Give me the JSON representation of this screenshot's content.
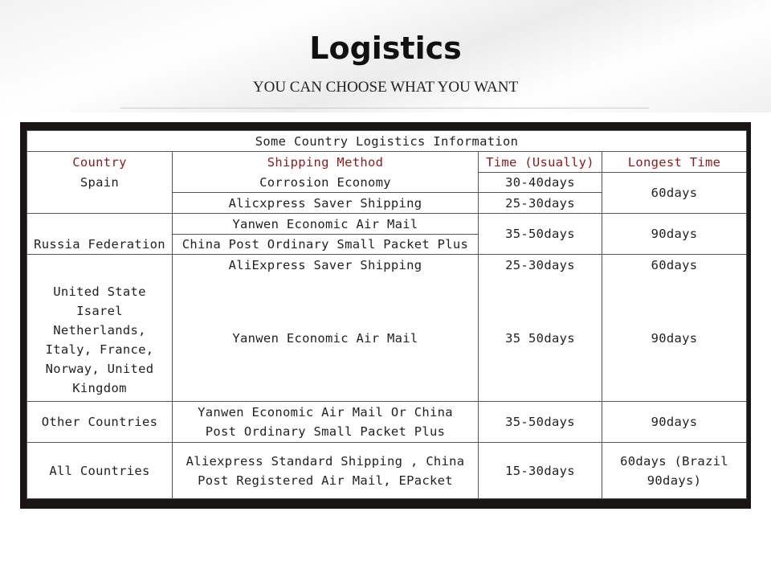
{
  "header": {
    "title": "Logistics",
    "subtitle": "YOU CAN CHOOSE WHAT YOU WANT"
  },
  "table": {
    "caption": "Some Country Logistics Information",
    "columns": [
      "Country",
      "Shipping Method",
      "Time (Usually)",
      "Longest Time"
    ],
    "spain": {
      "country": "Spain",
      "method1": "Corrosion Economy",
      "time1": "30-40days",
      "method2": "Alicxpress Saver Shipping",
      "time2": "25-30days",
      "longest": "60days"
    },
    "russia": {
      "country": "Russia Federation",
      "method1": "Yanwen Economic Air Mail",
      "method2": "China Post Ordinary Small Packet Plus",
      "time": "35-50days",
      "longest": "90days"
    },
    "us": {
      "country": "United State Isarel Netherlands, Italy, France, Norway, United Kingdom",
      "method1": "AliExpress Saver Shipping",
      "time1": "25-30days",
      "longest1": "60days",
      "method2": "Yanwen Economic Air Mail",
      "time2": "35 50days",
      "longest2": "90days"
    },
    "other": {
      "country": "Other Countries",
      "method": "Yanwen Economic Air Mail Or China Post Ordinary Small Packet Plus",
      "time": "35-50days",
      "longest": "90days"
    },
    "all": {
      "country": "All Countries",
      "method": "Aliexpress Standard Shipping , China Post Registered Air Mail, EPacket",
      "time": "15-30days",
      "longest": "60days (Brazil 90days)"
    }
  }
}
